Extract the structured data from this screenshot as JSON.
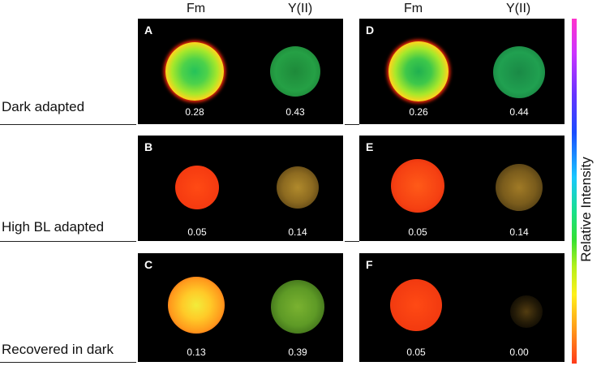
{
  "column_headers": [
    "Fm",
    "Y(II)",
    "Fm",
    "Y(II)"
  ],
  "rows": [
    {
      "label": "Dark adapted"
    },
    {
      "label": "High BL adapted"
    },
    {
      "label": "Recovered in dark"
    }
  ],
  "panels": [
    {
      "letter": "A",
      "values": [
        "0.28",
        "0.43"
      ]
    },
    {
      "letter": "D",
      "values": [
        "0.26",
        "0.44"
      ]
    },
    {
      "letter": "B",
      "values": [
        "0.05",
        "0.14"
      ]
    },
    {
      "letter": "E",
      "values": [
        "0.05",
        "0.14"
      ]
    },
    {
      "letter": "C",
      "values": [
        "0.13",
        "0.39"
      ]
    },
    {
      "letter": "F",
      "values": [
        "0.05",
        "0.00"
      ]
    }
  ],
  "scale": {
    "label": "Relative Intensity"
  }
}
